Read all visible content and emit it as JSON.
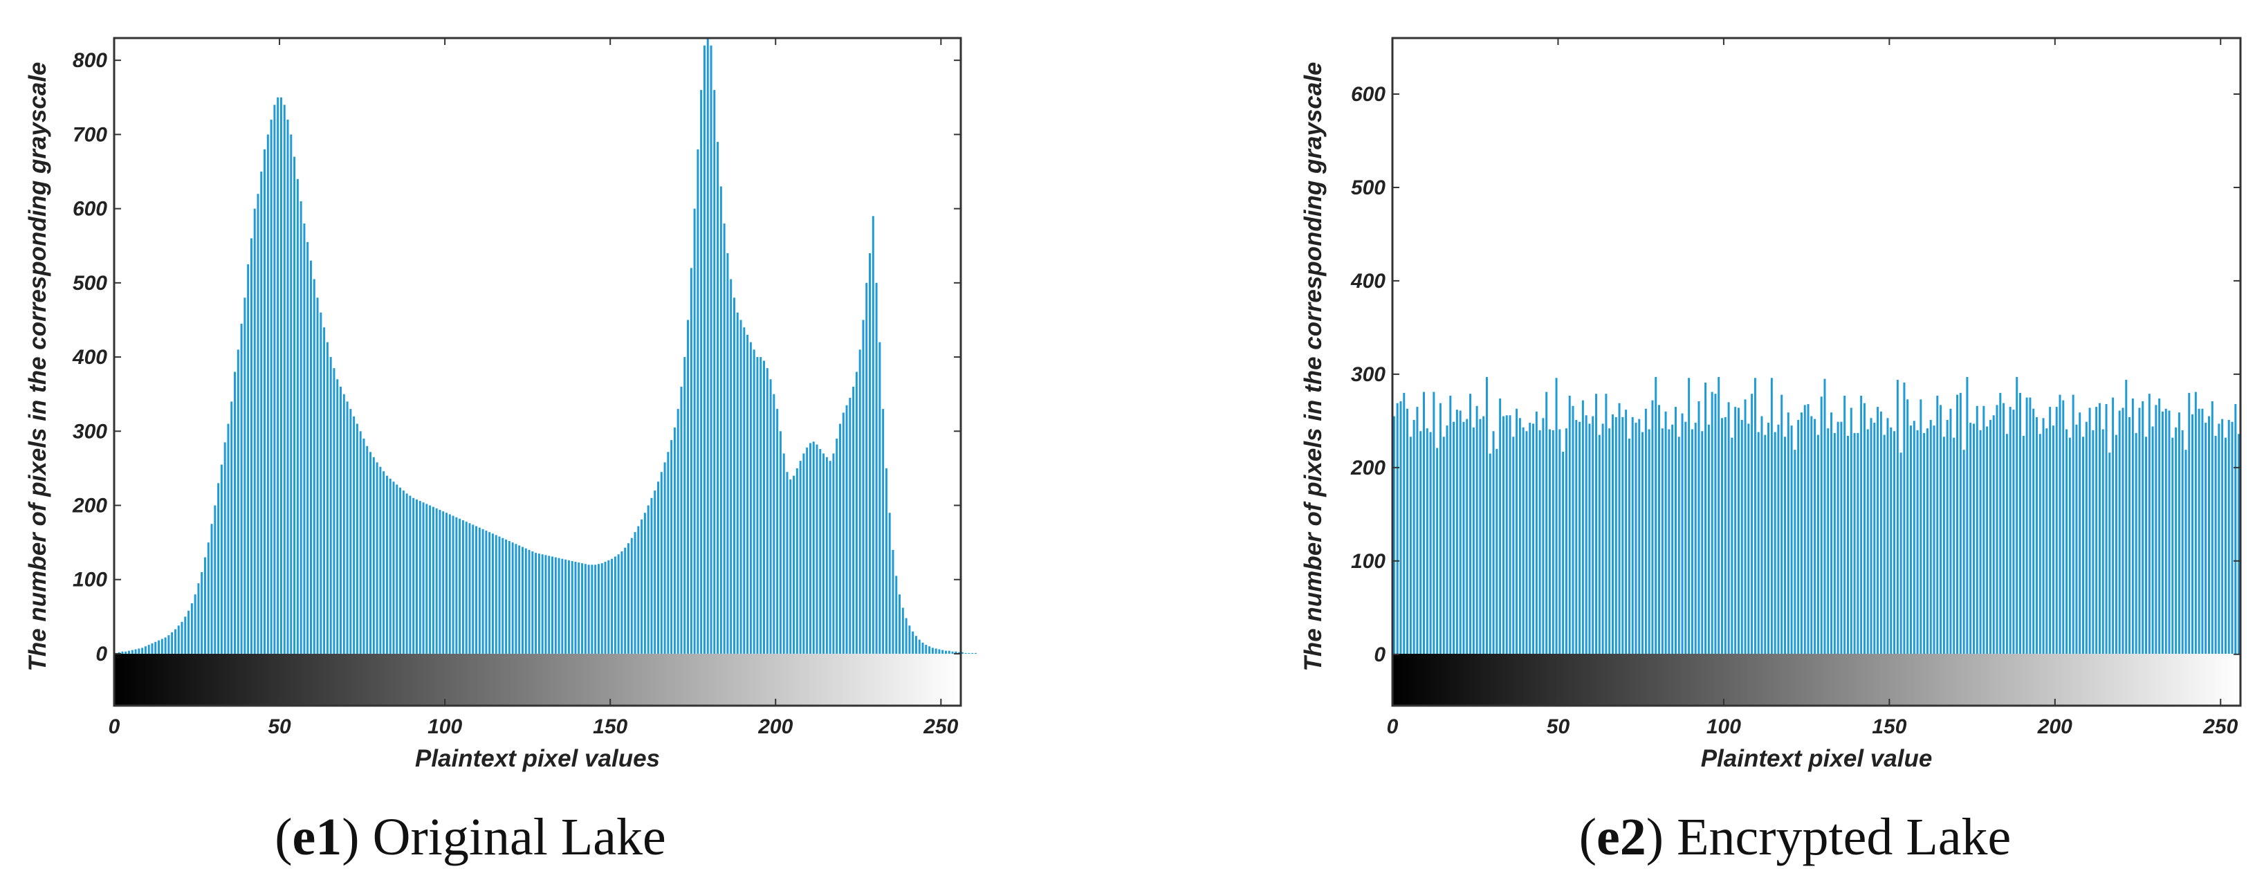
{
  "colors": {
    "bar": "#1e9ad6",
    "frame": "#333333",
    "text": "#222222"
  },
  "chart_data": [
    {
      "type": "bar",
      "caption_label": "e1",
      "caption_text": "Original Lake",
      "xlabel": "Plaintext pixel values",
      "ylabel": "The number of pixels in the corresponding grayscale",
      "xlim": [
        0,
        256
      ],
      "ylim": [
        -70,
        830
      ],
      "xticks": [
        0,
        50,
        100,
        150,
        200,
        250
      ],
      "yticks": [
        0,
        100,
        200,
        300,
        400,
        500,
        600,
        700,
        800
      ],
      "xtick_labels": [
        "0",
        "50",
        "100",
        "150",
        "200",
        "250"
      ],
      "ytick_labels": [
        "0",
        "100",
        "200",
        "300",
        "400",
        "500",
        "600",
        "700",
        "800"
      ],
      "colorbar": "grayscale 0-255 below zero line",
      "x_range": [
        0,
        255
      ],
      "values": [
        1,
        2,
        3,
        3,
        4,
        5,
        6,
        7,
        8,
        10,
        12,
        14,
        16,
        18,
        20,
        22,
        25,
        29,
        33,
        38,
        43,
        50,
        58,
        68,
        80,
        95,
        110,
        130,
        150,
        175,
        200,
        230,
        255,
        285,
        310,
        340,
        380,
        410,
        445,
        480,
        525,
        560,
        600,
        620,
        650,
        680,
        700,
        720,
        740,
        750,
        750,
        740,
        720,
        700,
        670,
        640,
        610,
        580,
        555,
        530,
        505,
        480,
        460,
        440,
        420,
        400,
        385,
        370,
        360,
        350,
        340,
        330,
        320,
        310,
        300,
        290,
        280,
        272,
        265,
        258,
        252,
        246,
        240,
        236,
        232,
        228,
        224,
        220,
        216,
        213,
        210,
        208,
        206,
        204,
        202,
        200,
        198,
        196,
        194,
        192,
        190,
        188,
        186,
        184,
        182,
        180,
        178,
        176,
        174,
        172,
        170,
        168,
        166,
        164,
        162,
        160,
        158,
        156,
        154,
        152,
        150,
        148,
        146,
        144,
        142,
        140,
        138,
        136,
        135,
        134,
        133,
        132,
        131,
        130,
        129,
        128,
        127,
        126,
        125,
        124,
        123,
        122,
        121,
        120,
        120,
        120,
        121,
        122,
        124,
        126,
        128,
        131,
        134,
        138,
        143,
        149,
        156,
        164,
        172,
        181,
        190,
        200,
        210,
        220,
        232,
        245,
        258,
        272,
        288,
        305,
        330,
        360,
        400,
        450,
        520,
        600,
        680,
        760,
        820,
        850,
        820,
        760,
        690,
        630,
        580,
        540,
        505,
        480,
        460,
        450,
        440,
        430,
        420,
        410,
        400,
        400,
        395,
        385,
        370,
        350,
        330,
        300,
        270,
        245,
        235,
        240,
        250,
        260,
        270,
        278,
        284,
        286,
        282,
        276,
        270,
        265,
        260,
        270,
        290,
        310,
        325,
        335,
        345,
        360,
        380,
        410,
        450,
        500,
        540,
        590,
        500,
        420,
        330,
        250,
        190,
        140,
        105,
        80,
        62,
        48,
        38,
        30,
        24,
        19,
        15,
        12,
        10,
        8,
        7,
        6,
        5,
        4,
        4,
        3,
        3,
        2,
        2,
        1,
        1,
        1,
        1
      ]
    },
    {
      "type": "bar",
      "caption_label": "e2",
      "caption_text": "Encrypted Lake",
      "xlabel": "Plaintext pixel value",
      "ylabel": "The number of pixels in the corresponding grayscale",
      "xlim": [
        0,
        256
      ],
      "ylim": [
        -55,
        660
      ],
      "xticks": [
        0,
        50,
        100,
        150,
        200,
        250
      ],
      "yticks": [
        0,
        100,
        200,
        300,
        400,
        500,
        600
      ],
      "xtick_labels": [
        "0",
        "50",
        "100",
        "150",
        "200",
        "250"
      ],
      "ytick_labels": [
        "0",
        "100",
        "200",
        "300",
        "400",
        "500",
        "600"
      ],
      "colorbar": "grayscale 0-255 below zero line",
      "x_range": [
        0,
        255
      ],
      "value_range": [
        215,
        298
      ],
      "mean_value": 256
    }
  ]
}
